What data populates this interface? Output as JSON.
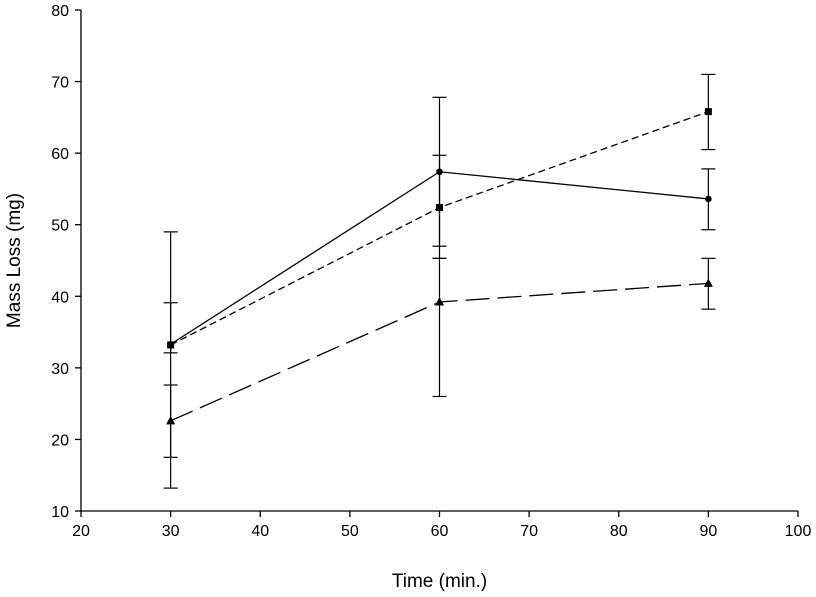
{
  "chart_data": {
    "type": "line",
    "title": "",
    "xlabel": "Time (min.)",
    "ylabel": "Mass Loss (mg)",
    "xlim": [
      20,
      100
    ],
    "ylim": [
      10,
      80
    ],
    "xticks": [
      20,
      30,
      40,
      50,
      60,
      70,
      80,
      90,
      100
    ],
    "yticks": [
      10,
      20,
      30,
      40,
      50,
      60,
      70,
      80
    ],
    "grid": false,
    "legend": "none",
    "series": [
      {
        "name": "circles (solid)",
        "marker": "circle",
        "line_style": "solid",
        "x": [
          30,
          60,
          90
        ],
        "y": [
          33.3,
          57.4,
          53.6
        ],
        "err": [
          [
            32.1,
            39.1
          ],
          [
            47.0,
            59.7
          ],
          [
            49.3,
            57.8
          ]
        ]
      },
      {
        "name": "squares (short dash)",
        "marker": "square",
        "line_style": "short-dash",
        "x": [
          30,
          60,
          90
        ],
        "y": [
          33.2,
          52.4,
          65.8
        ],
        "err": [
          [
            17.5,
            49.0
          ],
          [
            45.3,
            67.8
          ],
          [
            60.5,
            71.0
          ]
        ]
      },
      {
        "name": "triangles (long dash)",
        "marker": "triangle",
        "line_style": "long-dash",
        "x": [
          30,
          60,
          90
        ],
        "y": [
          22.6,
          39.2,
          41.8
        ],
        "err": [
          [
            13.2,
            27.6
          ],
          [
            26.0,
            45.3
          ],
          [
            38.2,
            45.3
          ]
        ]
      }
    ]
  }
}
